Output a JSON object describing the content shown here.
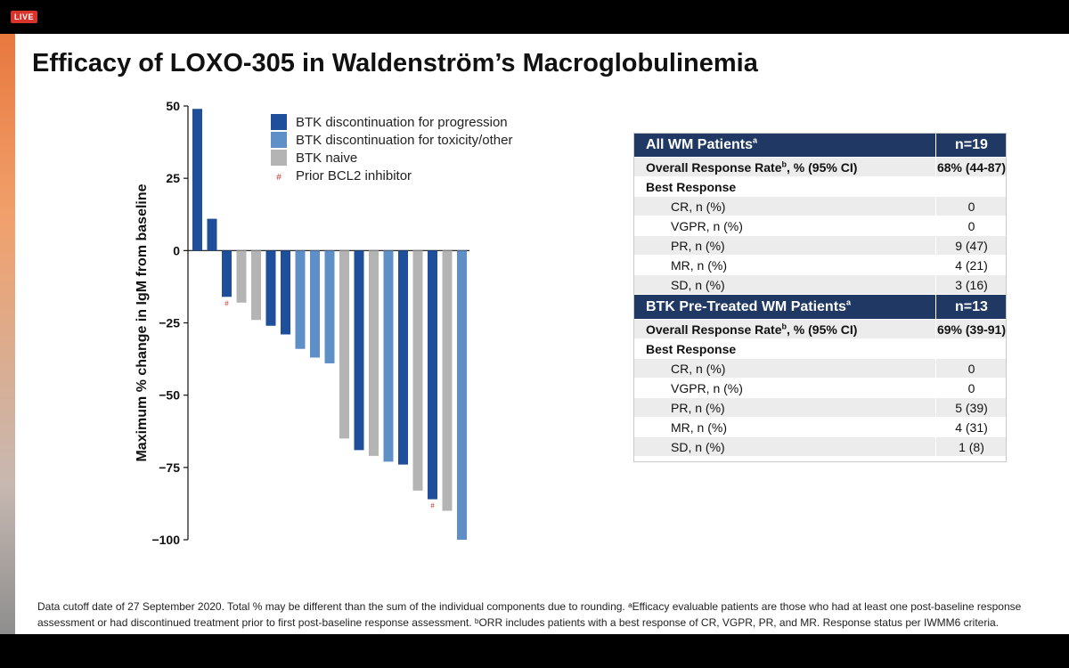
{
  "badge": "LIVE",
  "slide": {
    "title": "Efficacy of LOXO-305 in Waldenström’s Macroglobulinemia",
    "footnote": "Data cutoff date of 27 September 2020. Total % may be different than the sum of the individual components due to rounding. ᵃEfficacy evaluable patients are those who had at least one post-baseline response assessment or had discontinued treatment prior to first post-baseline response assessment. ᵇORR includes patients with a best response of CR, VGPR, PR, and MR. Response status per IWMM6 criteria."
  },
  "colors": {
    "progression": "#1f4e9a",
    "toxicity": "#5f8fc7",
    "naive": "#b4b4b4",
    "bcl2_marker": "#c0392b",
    "table_header": "#203864"
  },
  "chart_data": {
    "type": "bar",
    "ylabel": "Maximum % change in IgM from baseline",
    "ylim": [
      -100,
      50
    ],
    "yticks": [
      50,
      25,
      0,
      -25,
      -50,
      -75,
      -100
    ],
    "ytick_labels": [
      "50",
      "25",
      "0",
      "−25",
      "−50",
      "−75",
      "−100"
    ],
    "legend": [
      {
        "key": "progression",
        "label": "BTK discontinuation for progression"
      },
      {
        "key": "toxicity",
        "label": "BTK discontinuation for toxicity/other"
      },
      {
        "key": "naive",
        "label": "BTK naive"
      },
      {
        "key": "bcl2",
        "symbol": "#",
        "label": "Prior BCL2 inhibitor"
      }
    ],
    "legend_position": "top-right",
    "bars": [
      {
        "value": 49,
        "group": "progression",
        "bcl2": false
      },
      {
        "value": 11,
        "group": "progression",
        "bcl2": false
      },
      {
        "value": -16,
        "group": "progression",
        "bcl2": true
      },
      {
        "value": -18,
        "group": "naive",
        "bcl2": false
      },
      {
        "value": -24,
        "group": "naive",
        "bcl2": false
      },
      {
        "value": -26,
        "group": "progression",
        "bcl2": false
      },
      {
        "value": -29,
        "group": "progression",
        "bcl2": false
      },
      {
        "value": -34,
        "group": "toxicity",
        "bcl2": false
      },
      {
        "value": -37,
        "group": "toxicity",
        "bcl2": false
      },
      {
        "value": -39,
        "group": "toxicity",
        "bcl2": false
      },
      {
        "value": -65,
        "group": "naive",
        "bcl2": false
      },
      {
        "value": -69,
        "group": "progression",
        "bcl2": false
      },
      {
        "value": -71,
        "group": "naive",
        "bcl2": false
      },
      {
        "value": -73,
        "group": "toxicity",
        "bcl2": false
      },
      {
        "value": -74,
        "group": "progression",
        "bcl2": false
      },
      {
        "value": -83,
        "group": "naive",
        "bcl2": false
      },
      {
        "value": -86,
        "group": "progression",
        "bcl2": true
      },
      {
        "value": -90,
        "group": "naive",
        "bcl2": false
      },
      {
        "value": -100,
        "group": "toxicity",
        "bcl2": false
      }
    ]
  },
  "table": {
    "sections": [
      {
        "header_label": "All WM Patients",
        "header_sup": "a",
        "header_n": "n=19",
        "orr_label": "Overall Response Rate",
        "orr_sup": "b",
        "orr_suffix": ", % (95% CI)",
        "orr_value": "68% (44-87)",
        "best_response_label": "Best Response",
        "rows": [
          {
            "label": "CR, n (%)",
            "value": "0"
          },
          {
            "label": "VGPR, n (%)",
            "value": "0"
          },
          {
            "label": "PR, n (%)",
            "value": "9 (47)"
          },
          {
            "label": "MR, n (%)",
            "value": "4 (21)"
          },
          {
            "label": "SD, n (%)",
            "value": "3 (16)"
          }
        ]
      },
      {
        "header_label": "BTK Pre-Treated WM Patients",
        "header_sup": "a",
        "header_n": "n=13",
        "orr_label": "Overall Response Rate",
        "orr_sup": "b",
        "orr_suffix": ", % (95% CI)",
        "orr_value": "69% (39-91)",
        "best_response_label": "Best Response",
        "rows": [
          {
            "label": "CR, n (%)",
            "value": "0"
          },
          {
            "label": "VGPR, n (%)",
            "value": "0"
          },
          {
            "label": "PR, n (%)",
            "value": "5 (39)"
          },
          {
            "label": "MR, n (%)",
            "value": "4 (31)"
          },
          {
            "label": "SD, n (%)",
            "value": "1 (8)"
          }
        ]
      }
    ]
  }
}
